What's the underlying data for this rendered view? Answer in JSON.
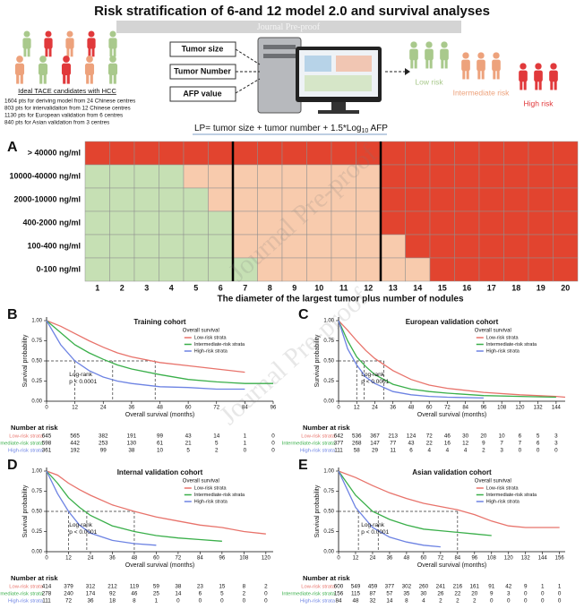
{
  "title": "Risk stratification of 6-and 12 model 2.0 and survival analyses",
  "watermark": "Journal Pre-proof",
  "panel_labels": [
    "A",
    "B",
    "C",
    "D",
    "E"
  ],
  "infographic": {
    "cohort_title": "Ideal TACE candidates with HCC",
    "cohorts": [
      "1604 pts for deriving model from 24 Chinese centres",
      "803 pts for intervalidaiton from 12 Chinese centres",
      "1130 pts for European validation from 6 centres",
      "840 pts for Asian validation from 3 centres"
    ],
    "inputs": [
      "Tumor size",
      "Tumor Number",
      "AFP value"
    ],
    "risk_groups": [
      {
        "name": "Low risk",
        "color": "#a9c98c"
      },
      {
        "name": "Intermediate risk",
        "color": "#eda27c"
      },
      {
        "name": "High risk",
        "color": "#e1393b"
      }
    ],
    "formula": {
      "main": "LP= tumor size + tumor number + 1.5*Log",
      "subscript": "10",
      "end": " AFP"
    }
  },
  "chart_data": [
    {
      "type": "heatmap",
      "xlabel": "The diameter of the largest tumor plus number of nodules",
      "x": [
        1,
        2,
        3,
        4,
        5,
        6,
        7,
        8,
        9,
        10,
        11,
        12,
        13,
        14,
        15,
        16,
        17,
        18,
        19,
        20
      ],
      "y_categories": [
        "> 40000 ng/ml",
        "10000-40000 ng/ml",
        "2000-10000 ng/ml",
        "400-2000 ng/ml",
        "100-400 ng/ml",
        "0-100 ng/ml"
      ],
      "colors": [
        "#c6e0b4",
        "#f8cbad",
        "#e2442f"
      ],
      "z": [
        [
          2,
          2,
          2,
          2,
          2,
          2,
          2,
          2,
          2,
          2,
          2,
          2,
          2,
          2,
          2,
          2,
          2,
          2,
          2,
          2
        ],
        [
          0,
          0,
          0,
          0,
          1,
          1,
          1,
          1,
          1,
          1,
          1,
          1,
          2,
          2,
          2,
          2,
          2,
          2,
          2,
          2
        ],
        [
          0,
          0,
          0,
          0,
          0,
          1,
          1,
          1,
          1,
          1,
          1,
          1,
          2,
          2,
          2,
          2,
          2,
          2,
          2,
          2
        ],
        [
          0,
          0,
          0,
          0,
          0,
          0,
          1,
          1,
          1,
          1,
          1,
          1,
          2,
          2,
          2,
          2,
          2,
          2,
          2,
          2
        ],
        [
          0,
          0,
          0,
          0,
          0,
          0,
          1,
          1,
          1,
          1,
          1,
          1,
          1,
          2,
          2,
          2,
          2,
          2,
          2,
          2
        ],
        [
          0,
          0,
          0,
          0,
          0,
          0,
          0,
          1,
          1,
          1,
          1,
          1,
          1,
          1,
          2,
          2,
          2,
          2,
          2,
          2
        ]
      ],
      "divider_after": [
        6,
        12
      ]
    },
    {
      "type": "line",
      "title": "Training cohort",
      "ylabel": "Survival probability",
      "xlabel": "Overall survival (months)",
      "legend_title": "Overall survival",
      "annotation": [
        "Log-rank",
        "p < 0.0001"
      ],
      "risk_title": "Number at risk",
      "xlim": [
        0,
        96
      ],
      "xticks": [
        0,
        12,
        24,
        36,
        48,
        60,
        72,
        84,
        96
      ],
      "ylim": [
        0,
        1
      ],
      "yticks": [
        {
          "value": 0,
          "label": "0.00"
        },
        {
          "value": 0.25,
          "label": "0.25"
        },
        {
          "value": 0.5,
          "label": "0.50"
        },
        {
          "value": 0.75,
          "label": "0.75"
        },
        {
          "value": 1,
          "label": "1.00"
        }
      ],
      "median_y": 0.5,
      "medians": [
        46,
        28,
        12
      ],
      "x": [
        0,
        6,
        12,
        18,
        24,
        30,
        36,
        48,
        60,
        72,
        84,
        96
      ],
      "series": [
        {
          "name": "Low-risk strata",
          "color": "#e8736b",
          "values": [
            1,
            0.93,
            0.84,
            0.75,
            0.67,
            0.6,
            0.55,
            0.48,
            0.44,
            0.4,
            0.36,
            null
          ],
          "at_risk": [
            645,
            565,
            382,
            191,
            99,
            43,
            14,
            1,
            0
          ]
        },
        {
          "name": "Intermediate-risk strata",
          "color": "#3aaf4a",
          "values": [
            1,
            0.85,
            0.7,
            0.6,
            0.52,
            0.45,
            0.4,
            0.33,
            0.27,
            0.24,
            0.22,
            0.22
          ],
          "at_risk": [
            598,
            442,
            253,
            130,
            61,
            21,
            5,
            1,
            0
          ]
        },
        {
          "name": "High-risk strata",
          "color": "#6d83e3",
          "values": [
            1,
            0.7,
            0.5,
            0.38,
            0.3,
            0.25,
            0.22,
            0.18,
            0.17,
            0.15,
            0.15,
            null
          ],
          "at_risk": [
            361,
            192,
            99,
            38,
            10,
            5,
            2,
            0,
            0
          ]
        }
      ]
    },
    {
      "type": "line",
      "title": "European validation cohort",
      "ylabel": "Survival probability",
      "xlabel": "Overall survival (months)",
      "legend_title": "Overall survival",
      "annotation": [
        "Log-rank",
        "p < 0.0001"
      ],
      "risk_title": "Number at risk",
      "xlim": [
        0,
        150
      ],
      "xticks": [
        0,
        12,
        24,
        36,
        48,
        60,
        72,
        84,
        96,
        108,
        120,
        132,
        144
      ],
      "ylim": [
        0,
        1
      ],
      "yticks": [
        {
          "value": 0,
          "label": "0.00"
        },
        {
          "value": 0.25,
          "label": "0.25"
        },
        {
          "value": 0.5,
          "label": "0.50"
        },
        {
          "value": 0.75,
          "label": "0.75"
        },
        {
          "value": 1,
          "label": "1.00"
        }
      ],
      "median_y": 0.5,
      "medians": [
        30,
        17,
        12
      ],
      "x": [
        0,
        6,
        12,
        18,
        24,
        36,
        48,
        60,
        72,
        96,
        120,
        144,
        150
      ],
      "series": [
        {
          "name": "Low-risk strata",
          "color": "#e8736b",
          "values": [
            1,
            0.88,
            0.75,
            0.63,
            0.53,
            0.38,
            0.27,
            0.2,
            0.16,
            0.11,
            0.08,
            0.06,
            0.05
          ],
          "at_risk": [
            642,
            536,
            367,
            213,
            124,
            72,
            46,
            30,
            20,
            10,
            6,
            5,
            3
          ]
        },
        {
          "name": "Intermediate-risk strata",
          "color": "#3aaf4a",
          "values": [
            1,
            0.75,
            0.55,
            0.43,
            0.33,
            0.21,
            0.15,
            0.12,
            0.1,
            0.07,
            0.06,
            0.05,
            null
          ],
          "at_risk": [
            377,
            268,
            147,
            77,
            43,
            22,
            16,
            12,
            9,
            7,
            7,
            6,
            3
          ]
        },
        {
          "name": "High-risk strata",
          "color": "#6d83e3",
          "values": [
            1,
            0.65,
            0.45,
            0.3,
            0.22,
            0.12,
            0.08,
            0.06,
            0.05,
            0.04,
            null,
            null,
            null
          ],
          "at_risk": [
            111,
            58,
            29,
            11,
            6,
            4,
            4,
            4,
            2,
            3,
            0,
            0,
            0
          ]
        }
      ]
    },
    {
      "type": "line",
      "title": "Internal validation cohort",
      "ylabel": "Survival probability",
      "xlabel": "Overall survival (months)",
      "legend_title": "Overall survival",
      "annotation": [
        "Log-rank",
        "p < 0.0001"
      ],
      "risk_title": "Number at risk",
      "xlim": [
        0,
        124
      ],
      "xticks": [
        0,
        12,
        24,
        36,
        48,
        60,
        72,
        84,
        96,
        108,
        120
      ],
      "ylim": [
        0,
        1
      ],
      "yticks": [
        {
          "value": 0,
          "label": "0.00"
        },
        {
          "value": 0.25,
          "label": "0.25"
        },
        {
          "value": 0.5,
          "label": "0.50"
        },
        {
          "value": 0.75,
          "label": "0.75"
        },
        {
          "value": 1,
          "label": "1.00"
        }
      ],
      "median_y": 0.5,
      "medians": [
        48,
        22,
        12
      ],
      "x": [
        0,
        6,
        12,
        18,
        24,
        36,
        48,
        60,
        72,
        84,
        96,
        108,
        120
      ],
      "series": [
        {
          "name": "Low-risk strata",
          "color": "#e8736b",
          "values": [
            1,
            0.95,
            0.85,
            0.77,
            0.7,
            0.58,
            0.5,
            0.43,
            0.38,
            0.33,
            0.3,
            0.25,
            0.22
          ],
          "at_risk": [
            414,
            379,
            312,
            212,
            119,
            59,
            38,
            23,
            15,
            8,
            2
          ]
        },
        {
          "name": "Intermediate-risk strata",
          "color": "#3aaf4a",
          "values": [
            1,
            0.85,
            0.67,
            0.55,
            0.45,
            0.32,
            0.25,
            0.2,
            0.17,
            0.15,
            0.13,
            null,
            null
          ],
          "at_risk": [
            278,
            240,
            174,
            92,
            46,
            25,
            14,
            6,
            5,
            2,
            0
          ]
        },
        {
          "name": "High-risk strata",
          "color": "#6d83e3",
          "values": [
            1,
            0.72,
            0.5,
            0.33,
            0.23,
            0.14,
            0.1,
            0.08,
            null,
            null,
            null,
            null,
            null
          ],
          "at_risk": [
            111,
            72,
            36,
            18,
            8,
            1,
            0,
            0,
            0,
            0,
            0
          ]
        }
      ]
    },
    {
      "type": "line",
      "title": "Asian validation cohort",
      "ylabel": "Survival probability",
      "xlabel": "Overall survival (months)",
      "legend_title": "Overall survival",
      "annotation": [
        "Log-rank",
        "p < 0.0001"
      ],
      "risk_title": "Number at risk",
      "xlim": [
        0,
        160
      ],
      "xticks": [
        0,
        12,
        24,
        36,
        48,
        60,
        72,
        84,
        96,
        108,
        120,
        132,
        144,
        156
      ],
      "ylim": [
        0,
        1
      ],
      "yticks": [
        {
          "value": 0,
          "label": "0.00"
        },
        {
          "value": 0.25,
          "label": "0.25"
        },
        {
          "value": 0.5,
          "label": "0.50"
        },
        {
          "value": 0.75,
          "label": "0.75"
        },
        {
          "value": 1,
          "label": "1.00"
        }
      ],
      "median_y": 0.5,
      "medians": [
        84,
        28,
        14
      ],
      "x": [
        0,
        12,
        24,
        36,
        48,
        60,
        72,
        84,
        96,
        108,
        120,
        132,
        144,
        156
      ],
      "series": [
        {
          "name": "Low-risk strata",
          "color": "#e8736b",
          "values": [
            1,
            0.92,
            0.82,
            0.73,
            0.66,
            0.6,
            0.56,
            0.52,
            0.46,
            0.38,
            0.32,
            0.3,
            0.3,
            0.3
          ],
          "at_risk": [
            600,
            549,
            459,
            377,
            302,
            260,
            241,
            216,
            161,
            91,
            42,
            9,
            1,
            1
          ]
        },
        {
          "name": "Intermediate-risk strata",
          "color": "#3aaf4a",
          "values": [
            1,
            0.7,
            0.5,
            0.4,
            0.33,
            0.28,
            0.26,
            0.24,
            0.22,
            0.2,
            null,
            null,
            null,
            null
          ],
          "at_risk": [
            156,
            115,
            87,
            57,
            35,
            30,
            26,
            22,
            20,
            9,
            3,
            0,
            0,
            0
          ]
        },
        {
          "name": "High-risk strata",
          "color": "#6d83e3",
          "values": [
            1,
            0.55,
            0.3,
            0.18,
            0.12,
            0.08,
            0.06,
            null,
            null,
            null,
            null,
            null,
            null,
            null
          ],
          "at_risk": [
            84,
            48,
            32,
            14,
            8,
            4,
            2,
            2,
            2,
            0,
            0,
            0,
            0,
            0
          ]
        }
      ]
    }
  ]
}
